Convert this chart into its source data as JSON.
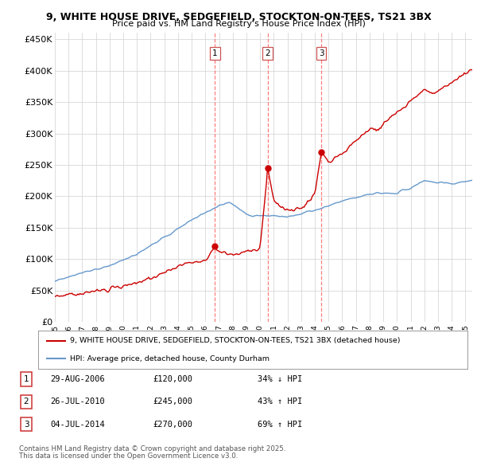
{
  "title1": "9, WHITE HOUSE DRIVE, SEDGEFIELD, STOCKTON-ON-TEES, TS21 3BX",
  "title2": "Price paid vs. HM Land Registry's House Price Index (HPI)",
  "yticks": [
    0,
    50000,
    100000,
    150000,
    200000,
    250000,
    300000,
    350000,
    400000,
    450000
  ],
  "ytick_labels": [
    "£0",
    "£50K",
    "£100K",
    "£150K",
    "£200K",
    "£250K",
    "£300K",
    "£350K",
    "£400K",
    "£450K"
  ],
  "xlim_start": 1995.0,
  "xlim_end": 2025.5,
  "ylim_min": 0,
  "ylim_max": 460000,
  "sale_dates": [
    2006.66,
    2010.57,
    2014.51
  ],
  "sale_prices": [
    120000,
    245000,
    270000
  ],
  "sale_labels": [
    "1",
    "2",
    "3"
  ],
  "sale_date_strs": [
    "29-AUG-2006",
    "26-JUL-2010",
    "04-JUL-2014"
  ],
  "sale_price_strs": [
    "£120,000",
    "£245,000",
    "£270,000"
  ],
  "sale_hpi_strs": [
    "34% ↓ HPI",
    "43% ↑ HPI",
    "69% ↑ HPI"
  ],
  "red_color": "#cc0000",
  "blue_color": "#6699cc",
  "vline_color": "#ff6666",
  "legend_line1": "9, WHITE HOUSE DRIVE, SEDGEFIELD, STOCKTON-ON-TEES, TS21 3BX (detached house)",
  "legend_line2": "HPI: Average price, detached house, County Durham",
  "footer1": "Contains HM Land Registry data © Crown copyright and database right 2025.",
  "footer2": "This data is licensed under the Open Government Licence v3.0."
}
